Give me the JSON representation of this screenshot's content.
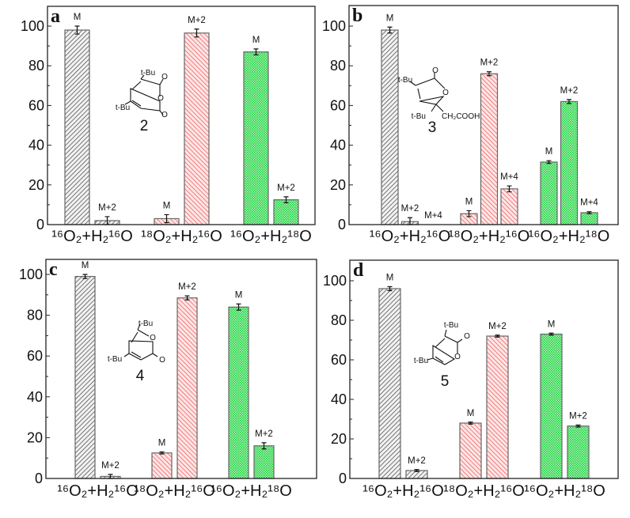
{
  "chart_data": [
    {
      "type": "bar",
      "panel_label": "a",
      "ylim": [
        0,
        110
      ],
      "yticks": [
        "0",
        "20",
        "40",
        "60",
        "80",
        "100"
      ],
      "categories": [
        "¹⁶O₂+H₂¹⁶O",
        "¹⁸O₂+H₂¹⁶O",
        "¹⁶O₂+H₂¹⁸O"
      ],
      "groups": [
        {
          "bars": [
            {
              "label": "M",
              "value": 98,
              "error": 2
            },
            {
              "label": "M+2",
              "value": 2,
              "error": 2
            }
          ]
        },
        {
          "bars": [
            {
              "label": "M",
              "value": 3,
              "error": 2
            },
            {
              "label": "M+2",
              "value": 96.5,
              "error": 2
            }
          ]
        },
        {
          "bars": [
            {
              "label": "M",
              "value": 87,
              "error": 1.5
            },
            {
              "label": "M+2",
              "value": 12.5,
              "error": 1.5
            }
          ]
        }
      ],
      "compound": {
        "number": "2",
        "labels": [
          "t-Bu",
          "t-Bu",
          "O",
          "O",
          "O"
        ]
      }
    },
    {
      "type": "bar",
      "panel_label": "b",
      "ylim": [
        0,
        110
      ],
      "yticks": [
        "0",
        "20",
        "40",
        "60",
        "80",
        "100"
      ],
      "categories": [
        "¹⁶O₂+H₂¹⁶O",
        "¹⁸O₂+H₂¹⁶O",
        "¹⁶O₂+H₂¹⁸O"
      ],
      "groups": [
        {
          "bars": [
            {
              "label": "M",
              "value": 98,
              "error": 1.5
            },
            {
              "label": "M+2",
              "value": 1.5,
              "error": 2
            },
            {
              "label": "M+4",
              "value": 0,
              "error": 0
            }
          ]
        },
        {
          "bars": [
            {
              "label": "M",
              "value": 5.5,
              "error": 1.5
            },
            {
              "label": "M+2",
              "value": 76,
              "error": 1
            },
            {
              "label": "M+4",
              "value": 18,
              "error": 1.5
            }
          ]
        },
        {
          "bars": [
            {
              "label": "M",
              "value": 31.5,
              "error": 0.7
            },
            {
              "label": "M+2",
              "value": 62,
              "error": 1
            },
            {
              "label": "M+4",
              "value": 6,
              "error": 0.5
            }
          ]
        }
      ],
      "compound": {
        "number": "3",
        "labels": [
          "t-Bu",
          "t-Bu",
          "O",
          "O",
          "CH₂COOH"
        ]
      }
    },
    {
      "type": "bar",
      "panel_label": "c",
      "ylim": [
        0,
        100
      ],
      "yticks": [
        "0",
        "20",
        "40",
        "60",
        "80",
        "100"
      ],
      "categories": [
        "¹⁶O₂+H₂¹⁶O",
        "¹⁸O₂+H₂¹⁶O",
        "¹⁶O₂+H₂¹⁸O"
      ],
      "groups": [
        {
          "bars": [
            {
              "label": "M",
              "value": 99,
              "error": 1
            },
            {
              "label": "M+2",
              "value": 1,
              "error": 1
            }
          ]
        },
        {
          "bars": [
            {
              "label": "M",
              "value": 12.5,
              "error": 0.5
            },
            {
              "label": "M+2",
              "value": 88.5,
              "error": 1
            }
          ]
        },
        {
          "bars": [
            {
              "label": "M",
              "value": 84,
              "error": 1.5
            },
            {
              "label": "M+2",
              "value": 16,
              "error": 1.5
            }
          ]
        }
      ],
      "compound": {
        "number": "4",
        "labels": [
          "t-Bu",
          "t-Bu",
          "O",
          "O"
        ]
      }
    },
    {
      "type": "bar",
      "panel_label": "d",
      "ylim": [
        0,
        110
      ],
      "yticks": [
        "0",
        "20",
        "40",
        "60",
        "80",
        "100"
      ],
      "categories": [
        "¹⁶O₂+H₂¹⁶O",
        "¹⁸O₂+H₂¹⁶O",
        "¹⁶O₂+H₂¹⁸O"
      ],
      "groups": [
        {
          "bars": [
            {
              "label": "M",
              "value": 96,
              "error": 1
            },
            {
              "label": "M+2",
              "value": 4,
              "error": 0.5
            }
          ]
        },
        {
          "bars": [
            {
              "label": "M",
              "value": 28,
              "error": 0.5
            },
            {
              "label": "M+2",
              "value": 72,
              "error": 0.5
            }
          ]
        },
        {
          "bars": [
            {
              "label": "M",
              "value": 73,
              "error": 0.5
            },
            {
              "label": "M+2",
              "value": 26.5,
              "error": 0.5
            }
          ]
        }
      ],
      "compound": {
        "number": "5",
        "labels": [
          "t-Bu",
          "t-Bu",
          "O",
          "O"
        ]
      }
    }
  ],
  "colors": {
    "group_1": "#5a5a5a",
    "group_2": "#ee6b6b",
    "group_3": "#1fdc3f",
    "axis": "#222222"
  }
}
